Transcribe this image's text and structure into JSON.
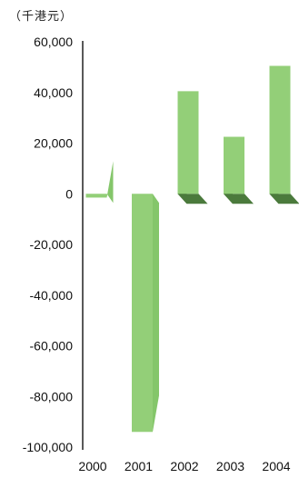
{
  "chart_data": {
    "type": "bar",
    "unit_label": "（千港元）",
    "categories": [
      "2000",
      "2001",
      "2002",
      "2003",
      "2004"
    ],
    "values": [
      -1500,
      -94000,
      40500,
      22500,
      50500
    ],
    "yticks": [
      "60,000",
      "40,000",
      "20,000",
      "0",
      "-20,000",
      "-40,000",
      "-60,000",
      "-80,000",
      "-100,000"
    ],
    "ylim": [
      -100000,
      60000
    ],
    "grid": false,
    "legend": "none",
    "style": "3d",
    "colors": {
      "bar_face": "#93cf78",
      "bar_face_edge": "#84c66a",
      "bar_side": "#4b7a3c",
      "axis": "#222222"
    }
  }
}
